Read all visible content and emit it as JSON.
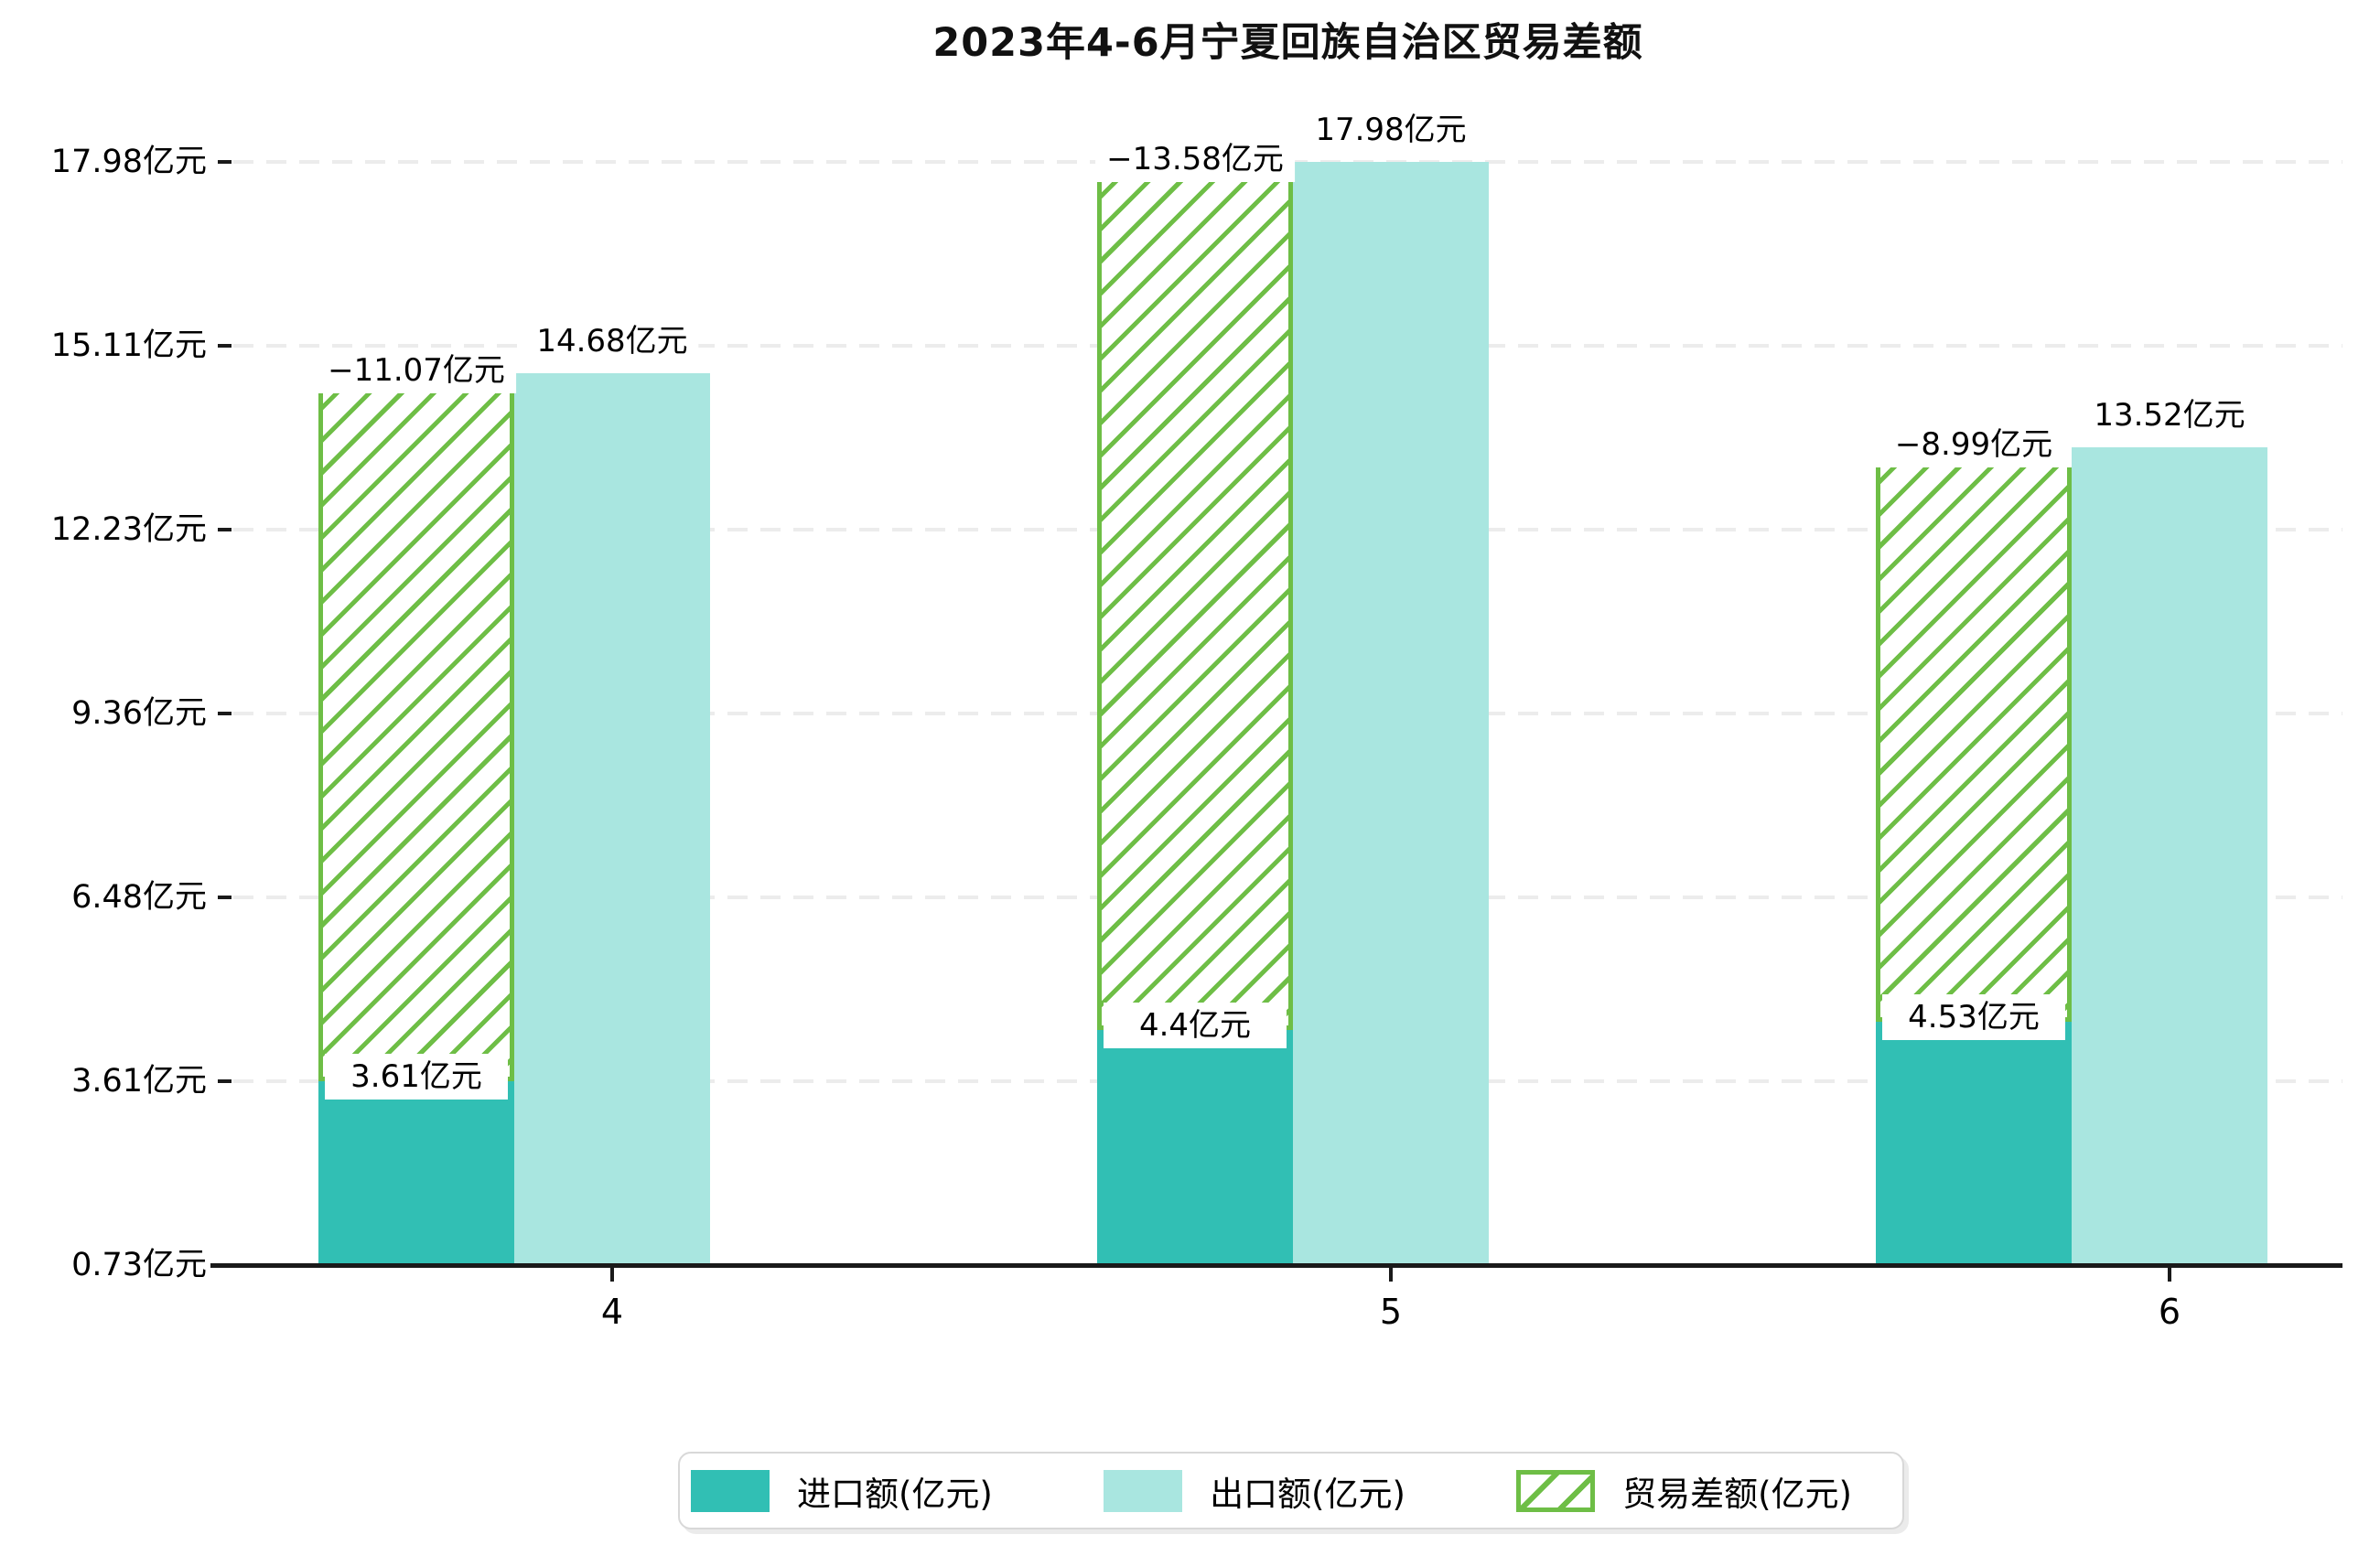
{
  "title": "2023年4-6月宁夏回族自治区贸易差额",
  "chart_data": {
    "type": "bar",
    "title": "2023年4-6月宁夏回族自治区贸易差额",
    "categories": [
      "4",
      "5",
      "6"
    ],
    "series": [
      {
        "name": "进口额(亿元)",
        "role": "import",
        "values": [
          3.61,
          4.4,
          4.53
        ],
        "labels": [
          "3.61亿元",
          "4.4亿元",
          "4.53亿元"
        ],
        "color": "#31bfb4",
        "style": "solid"
      },
      {
        "name": "出口额(亿元)",
        "role": "export",
        "values": [
          14.68,
          17.98,
          13.52
        ],
        "labels": [
          "14.68亿元",
          "17.98亿元",
          "13.52亿元"
        ],
        "color": "#a9e6e0",
        "style": "solid"
      },
      {
        "name": "贸易差额(亿元)",
        "role": "trade-balance",
        "values": [
          -11.07,
          -13.58,
          -8.99
        ],
        "labels": [
          "−11.07亿元",
          "−13.58亿元",
          "−8.99亿元"
        ],
        "color": "#6ebe46",
        "style": "hatched",
        "stacked_on": "进口额(亿元)"
      }
    ],
    "y_ticks": [
      {
        "value": 0.73,
        "label": "0.73亿元"
      },
      {
        "value": 3.61,
        "label": "3.61亿元"
      },
      {
        "value": 6.48,
        "label": "6.48亿元"
      },
      {
        "value": 9.36,
        "label": "9.36亿元"
      },
      {
        "value": 12.23,
        "label": "12.23亿元"
      },
      {
        "value": 15.11,
        "label": "15.11亿元"
      },
      {
        "value": 17.98,
        "label": "17.98亿元"
      }
    ],
    "ylim": [
      0.73,
      17.98
    ],
    "xlabel": "",
    "ylabel": "",
    "grid": "dashed-horizontal",
    "legend_position": "bottom-center"
  },
  "colors": {
    "import": "#31bfb4",
    "export": "#a9e6e0",
    "balance_hatch": "#6ebe46",
    "grid": "#ececec",
    "axis": "#1a1a1a",
    "legend_border": "#d8d8d8"
  }
}
